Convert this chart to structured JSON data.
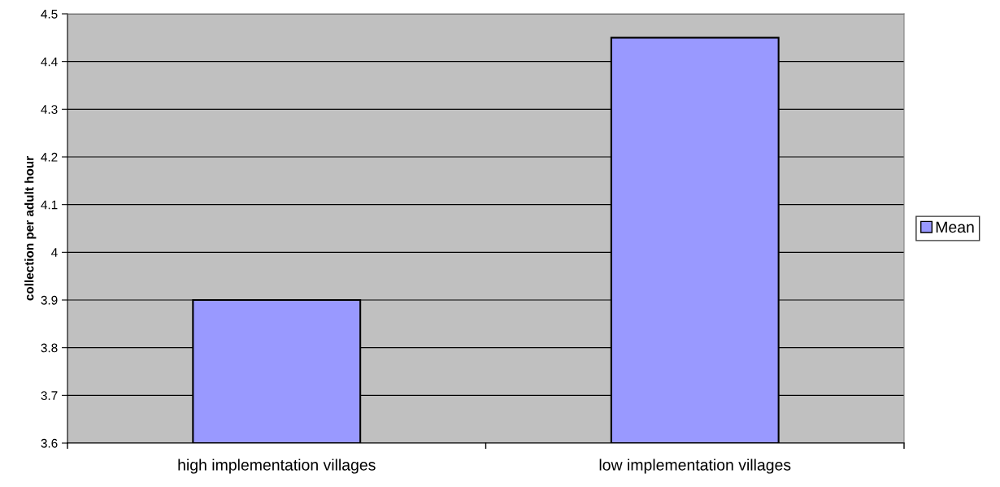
{
  "chart_data": {
    "type": "bar",
    "ylabel": "collection per adult hour",
    "categories": [
      "high implementation villages",
      "low implementation villages"
    ],
    "series": [
      {
        "name": "Mean",
        "color": "#9999ff",
        "values": [
          3.9,
          4.45
        ]
      }
    ],
    "ylim": [
      3.6,
      4.5
    ],
    "yticks": [
      3.6,
      3.7,
      3.8,
      3.9,
      4,
      4.1,
      4.2,
      4.3,
      4.4,
      4.5
    ],
    "grid": "y",
    "legend": "right"
  }
}
